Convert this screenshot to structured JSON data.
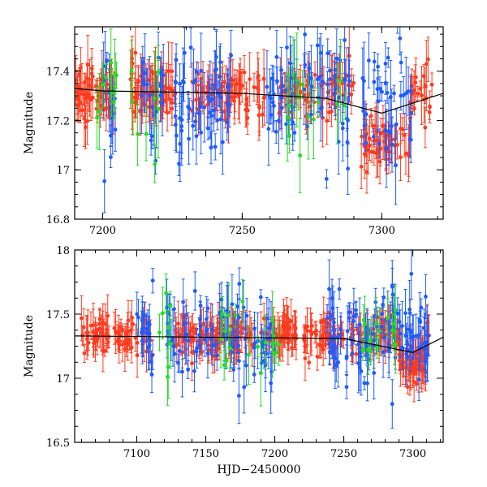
{
  "figure": {
    "xlabel": "HJD−2450000"
  },
  "colors": {
    "red": "#ff3b1f",
    "blue": "#1e5cff",
    "green": "#22dd22",
    "curve": "#000000"
  },
  "chart_data": [
    {
      "type": "scatter",
      "title": "",
      "xlabel": "",
      "ylabel": "Magnitude",
      "xlim": [
        7190,
        7322
      ],
      "ylim": [
        17.58,
        16.8
      ],
      "xticks": [
        7200,
        7250,
        7300
      ],
      "xtick_labels": [
        "7200",
        "7250",
        "7300"
      ],
      "yticks": [
        16.8,
        17.0,
        17.2,
        17.4
      ],
      "ytick_labels": [
        "16.8",
        "17",
        "17.2",
        "17.4"
      ],
      "trend": {
        "x": [
          7190,
          7200,
          7250,
          7280,
          7300,
          7322
        ],
        "y": [
          17.33,
          17.32,
          17.31,
          17.29,
          17.23,
          17.31
        ]
      },
      "series": [
        {
          "name": "red",
          "color": "#ff3b1f",
          "base": 17.31,
          "scatter": 0.05,
          "err": 0.06,
          "segments": [
            [
              7190,
              7204,
              70
            ],
            [
              7210,
              7226,
              60
            ],
            [
              7232,
              7258,
              70
            ],
            [
              7262,
              7290,
              60
            ],
            [
              7292,
              7312,
              60
            ],
            [
              7312,
              7318,
              15
            ]
          ],
          "excursions": [
            [
              7292,
              7310,
              17.1
            ]
          ]
        },
        {
          "name": "blue",
          "color": "#1e5cff",
          "base": 17.29,
          "scatter": 0.12,
          "err": 0.08,
          "segments": [
            [
              7200,
              7205,
              12
            ],
            [
              7214,
              7222,
              20
            ],
            [
              7226,
              7246,
              60
            ],
            [
              7258,
              7270,
              30
            ],
            [
              7272,
              7290,
              40
            ],
            [
              7293,
              7312,
              40
            ]
          ],
          "excursions": []
        },
        {
          "name": "green",
          "color": "#22dd22",
          "base": 17.28,
          "scatter": 0.1,
          "err": 0.1,
          "segments": [
            [
              7195,
              7206,
              10
            ],
            [
              7210,
              7220,
              8
            ],
            [
              7265,
              7288,
              14
            ]
          ],
          "excursions": []
        }
      ]
    },
    {
      "type": "scatter",
      "title": "",
      "xlabel": "HJD−2450000",
      "ylabel": "Magnitude",
      "xlim": [
        7055,
        7322
      ],
      "ylim": [
        18.0,
        16.5
      ],
      "xticks": [
        7100,
        7150,
        7200,
        7250,
        7300
      ],
      "xtick_labels": [
        "7100",
        "7150",
        "7200",
        "7250",
        "7300"
      ],
      "yticks": [
        16.5,
        17.0,
        17.5,
        18.0
      ],
      "ytick_labels": [
        "16.5",
        "17",
        "17.5",
        "18"
      ],
      "trend": {
        "x": [
          7055,
          7150,
          7250,
          7300,
          7322
        ],
        "y": [
          17.33,
          17.32,
          17.31,
          17.2,
          17.32
        ]
      },
      "series": [
        {
          "name": "red",
          "color": "#ff3b1f",
          "base": 17.34,
          "scatter": 0.07,
          "err": 0.09,
          "segments": [
            [
              7058,
              7110,
              80
            ],
            [
              7128,
              7184,
              110
            ],
            [
              7190,
              7216,
              50
            ],
            [
              7220,
              7250,
              50
            ],
            [
              7255,
              7290,
              60
            ],
            [
              7290,
              7312,
              60
            ]
          ],
          "excursions": [
            [
              7290,
              7310,
              17.12
            ]
          ]
        },
        {
          "name": "blue",
          "color": "#1e5cff",
          "base": 17.33,
          "scatter": 0.18,
          "err": 0.12,
          "segments": [
            [
              7100,
              7112,
              20
            ],
            [
              7120,
              7180,
              70
            ],
            [
              7185,
              7200,
              25
            ],
            [
              7238,
              7290,
              80
            ],
            [
              7290,
              7312,
              40
            ]
          ],
          "excursions": []
        },
        {
          "name": "green",
          "color": "#22dd22",
          "base": 17.32,
          "scatter": 0.15,
          "err": 0.14,
          "segments": [
            [
              7115,
              7125,
              8
            ],
            [
              7160,
              7205,
              20
            ],
            [
              7262,
              7288,
              14
            ]
          ],
          "excursions": []
        }
      ]
    }
  ]
}
